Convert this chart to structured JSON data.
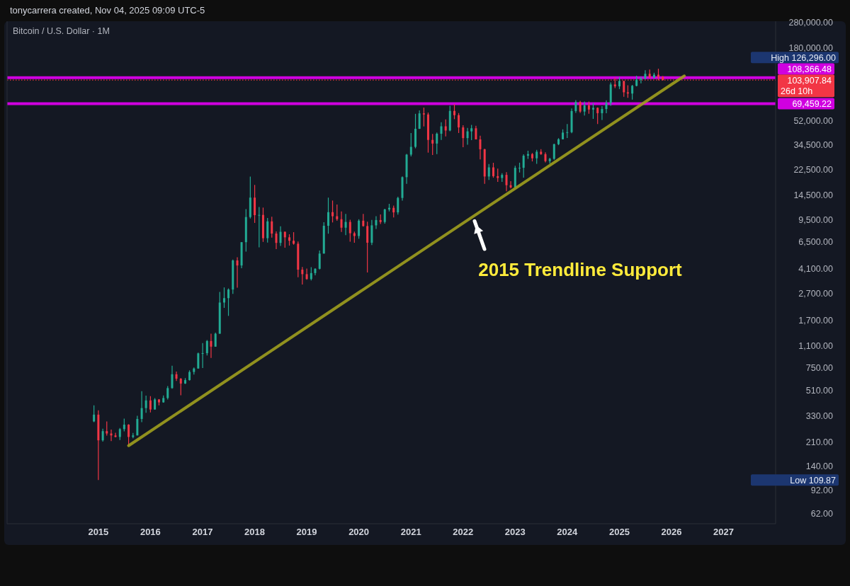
{
  "chart_data": {
    "type": "candlestick",
    "title": "Bitcoin / U.S. Dollar · 1M",
    "subtitle": "tonycarrera created, Nov 04, 2025 09:09 UTC-5",
    "x": [
      "2014-12",
      "2015-01",
      "2015-02",
      "2015-03",
      "2015-04",
      "2015-05",
      "2015-06",
      "2015-07",
      "2015-08",
      "2015-09",
      "2015-10",
      "2015-11",
      "2015-12",
      "2016-01",
      "2016-02",
      "2016-03",
      "2016-04",
      "2016-05",
      "2016-06",
      "2016-07",
      "2016-08",
      "2016-09",
      "2016-10",
      "2016-11",
      "2016-12",
      "2017-01",
      "2017-02",
      "2017-03",
      "2017-04",
      "2017-05",
      "2017-06",
      "2017-07",
      "2017-08",
      "2017-09",
      "2017-10",
      "2017-11",
      "2017-12",
      "2018-01",
      "2018-02",
      "2018-03",
      "2018-04",
      "2018-05",
      "2018-06",
      "2018-07",
      "2018-08",
      "2018-09",
      "2018-10",
      "2018-11",
      "2018-12",
      "2019-01",
      "2019-02",
      "2019-03",
      "2019-04",
      "2019-05",
      "2019-06",
      "2019-07",
      "2019-08",
      "2019-09",
      "2019-10",
      "2019-11",
      "2019-12",
      "2020-01",
      "2020-02",
      "2020-03",
      "2020-04",
      "2020-05",
      "2020-06",
      "2020-07",
      "2020-08",
      "2020-09",
      "2020-10",
      "2020-11",
      "2020-12",
      "2021-01",
      "2021-02",
      "2021-03",
      "2021-04",
      "2021-05",
      "2021-06",
      "2021-07",
      "2021-08",
      "2021-09",
      "2021-10",
      "2021-11",
      "2021-12",
      "2022-01",
      "2022-02",
      "2022-03",
      "2022-04",
      "2022-05",
      "2022-06",
      "2022-07",
      "2022-08",
      "2022-09",
      "2022-10",
      "2022-11",
      "2022-12",
      "2023-01",
      "2023-02",
      "2023-03",
      "2023-04",
      "2023-05",
      "2023-06",
      "2023-07",
      "2023-08",
      "2023-09",
      "2023-10",
      "2023-11",
      "2023-12",
      "2024-01",
      "2024-02",
      "2024-03",
      "2024-04",
      "2024-05",
      "2024-06",
      "2024-07",
      "2024-08",
      "2024-09",
      "2024-10",
      "2024-11",
      "2024-12",
      "2025-01",
      "2025-02",
      "2025-03",
      "2025-04",
      "2025-05",
      "2025-06",
      "2025-07",
      "2025-08",
      "2025-09",
      "2025-10",
      "2025-11"
    ],
    "ohlc": [
      [
        300,
        395,
        296,
        337
      ],
      [
        337,
        363,
        109.87,
        217
      ],
      [
        217,
        265,
        212,
        254
      ],
      [
        254,
        300,
        235,
        244
      ],
      [
        244,
        261,
        214,
        236
      ],
      [
        236,
        247,
        228,
        230
      ],
      [
        230,
        268,
        218,
        263
      ],
      [
        263,
        315,
        253,
        284
      ],
      [
        284,
        286,
        199,
        230
      ],
      [
        230,
        246,
        225,
        236
      ],
      [
        236,
        330,
        236,
        313
      ],
      [
        313,
        504,
        296,
        377
      ],
      [
        377,
        467,
        348,
        430
      ],
      [
        430,
        462,
        350,
        368
      ],
      [
        368,
        448,
        367,
        437
      ],
      [
        437,
        440,
        395,
        416
      ],
      [
        416,
        468,
        414,
        448
      ],
      [
        448,
        550,
        437,
        531
      ],
      [
        531,
        780,
        525,
        673
      ],
      [
        673,
        705,
        600,
        624
      ],
      [
        624,
        630,
        470,
        574
      ],
      [
        574,
        630,
        570,
        609
      ],
      [
        609,
        720,
        604,
        700
      ],
      [
        700,
        755,
        670,
        743
      ],
      [
        743,
        975,
        740,
        963
      ],
      [
        963,
        1150,
        750,
        966
      ],
      [
        966,
        1210,
        930,
        1190
      ],
      [
        1190,
        1350,
        890,
        1080
      ],
      [
        1080,
        1375,
        1080,
        1348
      ],
      [
        1348,
        2760,
        1348,
        2300
      ],
      [
        2300,
        2980,
        2100,
        2480
      ],
      [
        2480,
        2930,
        1830,
        2875
      ],
      [
        2875,
        4800,
        2670,
        4730
      ],
      [
        4730,
        5000,
        2970,
        4340
      ],
      [
        4340,
        6470,
        4140,
        6470
      ],
      [
        6470,
        11400,
        5500,
        9950
      ],
      [
        9950,
        19891,
        9700,
        13880
      ],
      [
        13880,
        17250,
        9000,
        10280
      ],
      [
        10280,
        11800,
        5920,
        10320
      ],
      [
        10320,
        11700,
        6500,
        6925
      ],
      [
        6925,
        9800,
        6430,
        9240
      ],
      [
        9240,
        10000,
        7000,
        7500
      ],
      [
        7500,
        7780,
        5750,
        6390
      ],
      [
        6390,
        8500,
        6070,
        7730
      ],
      [
        7730,
        7760,
        5880,
        7030
      ],
      [
        7030,
        7410,
        6100,
        6630
      ],
      [
        6630,
        7680,
        6200,
        6300
      ],
      [
        6300,
        6550,
        3550,
        4040
      ],
      [
        4040,
        4230,
        3130,
        3740
      ],
      [
        3740,
        4120,
        3400,
        3440
      ],
      [
        3440,
        4210,
        3360,
        3810
      ],
      [
        3810,
        4140,
        3670,
        4100
      ],
      [
        4100,
        5600,
        4050,
        5320
      ],
      [
        5320,
        9100,
        5320,
        8570
      ],
      [
        8570,
        13880,
        7480,
        10820
      ],
      [
        10820,
        13200,
        9070,
        10090
      ],
      [
        10090,
        12330,
        9330,
        9590
      ],
      [
        9590,
        10950,
        7710,
        8290
      ],
      [
        8290,
        10500,
        7300,
        9150
      ],
      [
        9150,
        9510,
        6520,
        7540
      ],
      [
        7540,
        7750,
        6410,
        7190
      ],
      [
        7190,
        9580,
        6860,
        9350
      ],
      [
        9350,
        10500,
        8450,
        8530
      ],
      [
        8530,
        9190,
        3850,
        6410
      ],
      [
        6410,
        9460,
        6150,
        8630
      ],
      [
        8630,
        10080,
        8110,
        9450
      ],
      [
        9450,
        10400,
        8830,
        9140
      ],
      [
        9140,
        11450,
        8890,
        11340
      ],
      [
        11340,
        12480,
        10960,
        11650
      ],
      [
        11650,
        12090,
        9880,
        10780
      ],
      [
        10780,
        14100,
        10370,
        13800
      ],
      [
        13800,
        19950,
        13200,
        19700
      ],
      [
        19700,
        29300,
        17570,
        28990
      ],
      [
        28990,
        41990,
        28080,
        33110
      ],
      [
        33110,
        58350,
        32300,
        45140
      ],
      [
        45140,
        61790,
        44950,
        58790
      ],
      [
        58790,
        64900,
        47000,
        57720
      ],
      [
        57720,
        59600,
        30000,
        37300
      ],
      [
        37300,
        41330,
        28800,
        35040
      ],
      [
        35040,
        42320,
        29280,
        41490
      ],
      [
        41490,
        50500,
        37330,
        47100
      ],
      [
        47100,
        52950,
        39600,
        43830
      ],
      [
        43830,
        67000,
        43300,
        61310
      ],
      [
        61310,
        69000,
        53250,
        57000
      ],
      [
        57000,
        59100,
        42000,
        46210
      ],
      [
        46210,
        47990,
        32930,
        38480
      ],
      [
        38480,
        45820,
        34320,
        43190
      ],
      [
        43190,
        48240,
        37200,
        45540
      ],
      [
        45540,
        47470,
        37580,
        37640
      ],
      [
        37640,
        40060,
        26700,
        31790
      ],
      [
        31790,
        31990,
        17570,
        19930
      ],
      [
        19930,
        24670,
        18780,
        23300
      ],
      [
        23300,
        25210,
        19520,
        20050
      ],
      [
        20050,
        22790,
        18150,
        19430
      ],
      [
        19430,
        21090,
        18190,
        20490
      ],
      [
        20490,
        21470,
        15480,
        17170
      ],
      [
        17170,
        18390,
        16260,
        16530
      ],
      [
        16530,
        23960,
        16500,
        23130
      ],
      [
        23130,
        25250,
        21350,
        23140
      ],
      [
        23140,
        29190,
        19550,
        28470
      ],
      [
        28470,
        31000,
        26940,
        29250
      ],
      [
        29250,
        29820,
        25810,
        27220
      ],
      [
        27220,
        31430,
        24760,
        30470
      ],
      [
        30470,
        31800,
        28860,
        29230
      ],
      [
        29230,
        30190,
        25350,
        25940
      ],
      [
        25940,
        27480,
        24900,
        26970
      ],
      [
        26970,
        35000,
        26550,
        34650
      ],
      [
        34650,
        38440,
        34100,
        37720
      ],
      [
        37720,
        44700,
        37620,
        42280
      ],
      [
        42280,
        48970,
        38520,
        42580
      ],
      [
        42580,
        64000,
        41880,
        61180
      ],
      [
        61180,
        73780,
        59300,
        71330
      ],
      [
        71330,
        72800,
        59200,
        60640
      ],
      [
        60640,
        71980,
        56560,
        67490
      ],
      [
        67490,
        71950,
        58400,
        62760
      ],
      [
        62760,
        70020,
        53500,
        64620
      ],
      [
        64620,
        65100,
        49000,
        58980
      ],
      [
        58980,
        66500,
        52550,
        63330
      ],
      [
        63330,
        73600,
        58880,
        70220
      ],
      [
        70220,
        99800,
        66830,
        96450
      ],
      [
        96450,
        108350,
        90500,
        93420
      ],
      [
        93420,
        109350,
        89160,
        102400
      ],
      [
        102400,
        102750,
        78170,
        84350
      ],
      [
        84350,
        95000,
        76600,
        82540
      ],
      [
        82540,
        95760,
        74400,
        94200
      ],
      [
        94200,
        111980,
        93400,
        104630
      ],
      [
        104630,
        110400,
        98200,
        107140
      ],
      [
        107140,
        123200,
        105100,
        115760
      ],
      [
        115760,
        124450,
        107300,
        108260
      ],
      [
        108260,
        117900,
        107260,
        114050
      ],
      [
        114050,
        126296,
        103500,
        109600
      ],
      [
        109600,
        111200,
        103500,
        103907.84
      ]
    ],
    "series": [
      {
        "type": "line",
        "x": [
          "2015-08",
          "2026-04"
        ],
        "values": [
          198,
          111700
        ],
        "color": "#9e9e1e"
      }
    ],
    "ylim": [
      52,
      285000
    ],
    "log": true,
    "yticks": [
      {
        "value": 62,
        "label": "62.00"
      },
      {
        "value": 92,
        "label": "92.00"
      },
      {
        "value": 140,
        "label": "140.00"
      },
      {
        "value": 210,
        "label": "210.00"
      },
      {
        "value": 330,
        "label": "330.00"
      },
      {
        "value": 510,
        "label": "510.00"
      },
      {
        "value": 750,
        "label": "750.00"
      },
      {
        "value": 1100,
        "label": "1,100.00"
      },
      {
        "value": 1700,
        "label": "1,700.00"
      },
      {
        "value": 2700,
        "label": "2,700.00"
      },
      {
        "value": 4100,
        "label": "4,100.00"
      },
      {
        "value": 6500,
        "label": "6,500.00"
      },
      {
        "value": 9500,
        "label": "9,500.00"
      },
      {
        "value": 14500,
        "label": "14,500.00"
      },
      {
        "value": 22500,
        "label": "22,500.00"
      },
      {
        "value": 34500,
        "label": "34,500.00"
      },
      {
        "value": 52000,
        "label": "52,000.00"
      },
      {
        "value": 180000,
        "label": "180,000.00"
      },
      {
        "value": 280000,
        "label": "280,000.00"
      }
    ],
    "xlim": [
      "2013-04",
      "2028-01"
    ],
    "xticks": [
      "2015",
      "2016",
      "2017",
      "2018",
      "2019",
      "2020",
      "2021",
      "2022",
      "2023",
      "2024",
      "2025",
      "2026",
      "2027"
    ],
    "ref_lines": [
      {
        "axis": "y",
        "value": 108366.48,
        "label": "108,366.48",
        "color": "#d000e0"
      },
      {
        "axis": "y",
        "value": 69459.22,
        "label": "69,459.22",
        "color": "#d000e0"
      },
      {
        "axis": "y",
        "value": 103907.84,
        "label": "103,907.84",
        "color": "#f23645",
        "line_style": "dotted"
      }
    ],
    "annotations": [
      "High 126,296.00",
      "Low 109.87",
      "26d 10h",
      "2015 Trendline Support"
    ],
    "grid": false
  }
}
